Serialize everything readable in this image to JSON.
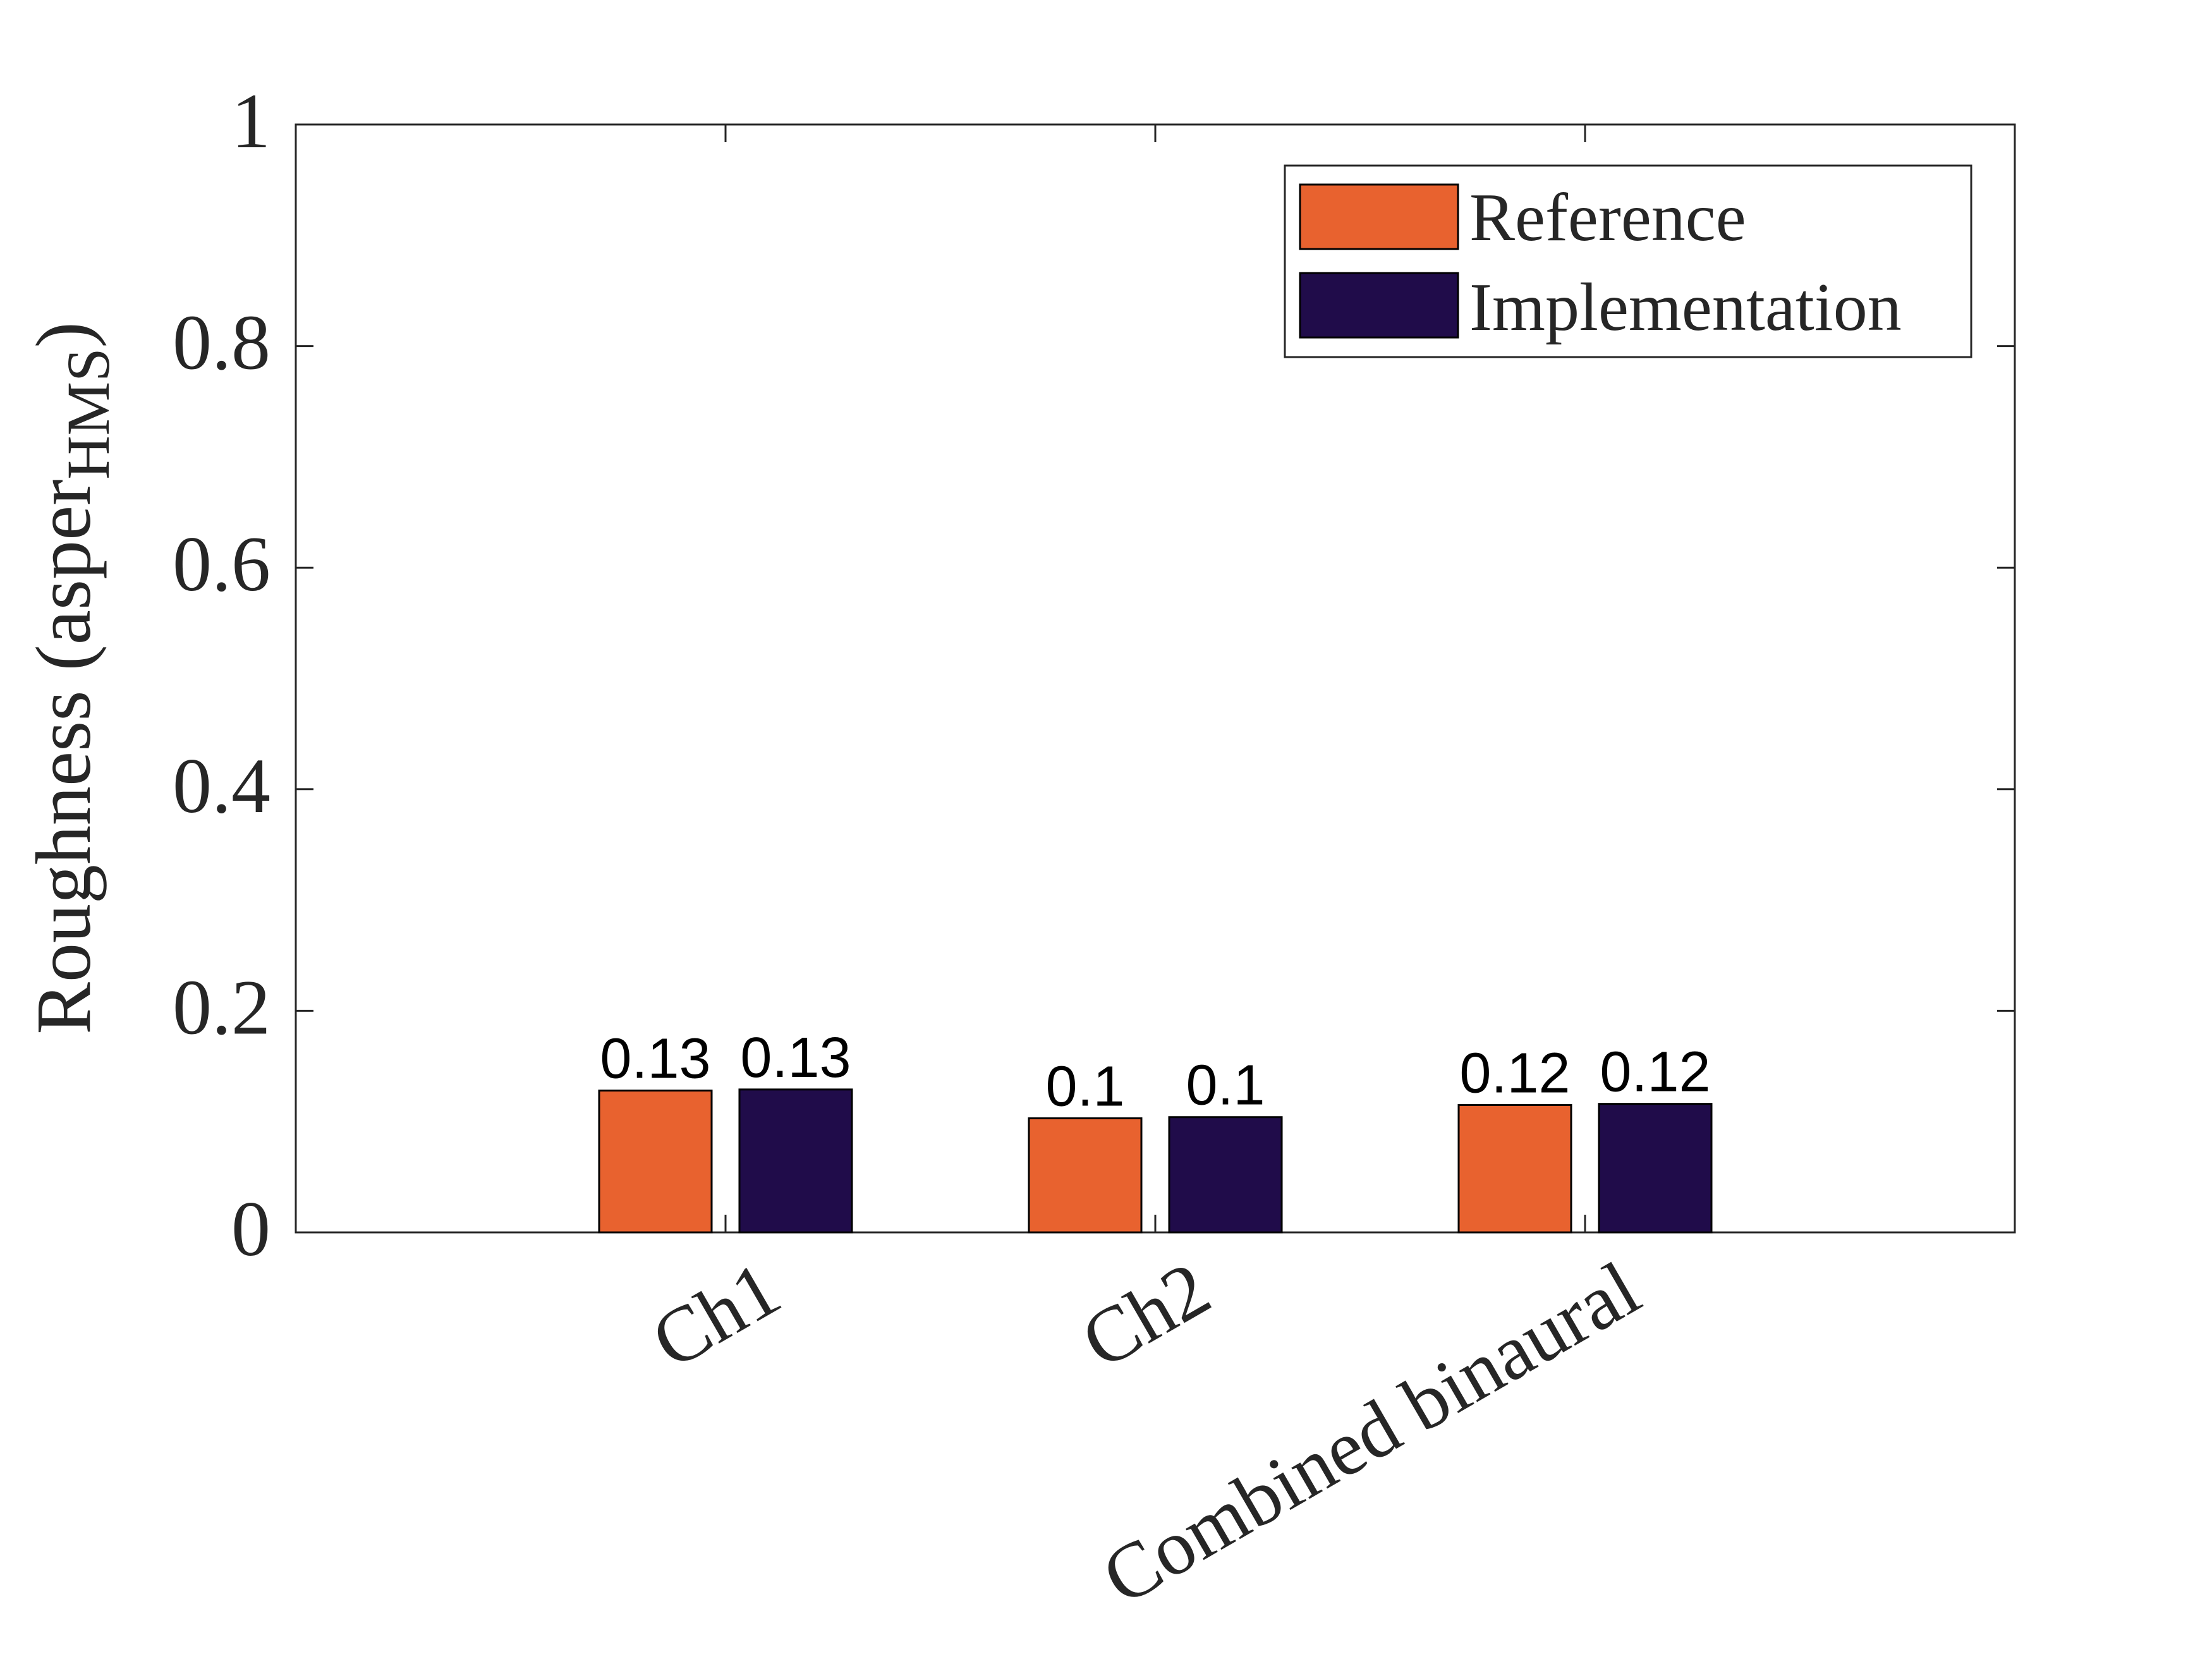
{
  "chart_data": {
    "type": "bar",
    "categories": [
      "Ch1",
      "Ch2",
      "Combined binaural"
    ],
    "series": [
      {
        "name": "Reference",
        "values": [
          0.128,
          0.103,
          0.115
        ],
        "labels": [
          "0.13",
          "0.1",
          "0.12"
        ],
        "color": "#E8622F"
      },
      {
        "name": "Implementation",
        "values": [
          0.129,
          0.104,
          0.116
        ],
        "labels": [
          "0.13",
          "0.1",
          "0.12"
        ],
        "color": "#200C4A"
      }
    ],
    "ylabel": {
      "main": "Roughness (asper",
      "sub": "HMS",
      "close": ")"
    },
    "ylim": [
      0,
      1
    ],
    "yticks": [
      0,
      0.2,
      0.4,
      0.6,
      0.8,
      1
    ],
    "ytick_labels": [
      "0",
      "0.2",
      "0.4",
      "0.6",
      "0.8",
      "1"
    ],
    "legend": "top-right",
    "grid": false
  }
}
